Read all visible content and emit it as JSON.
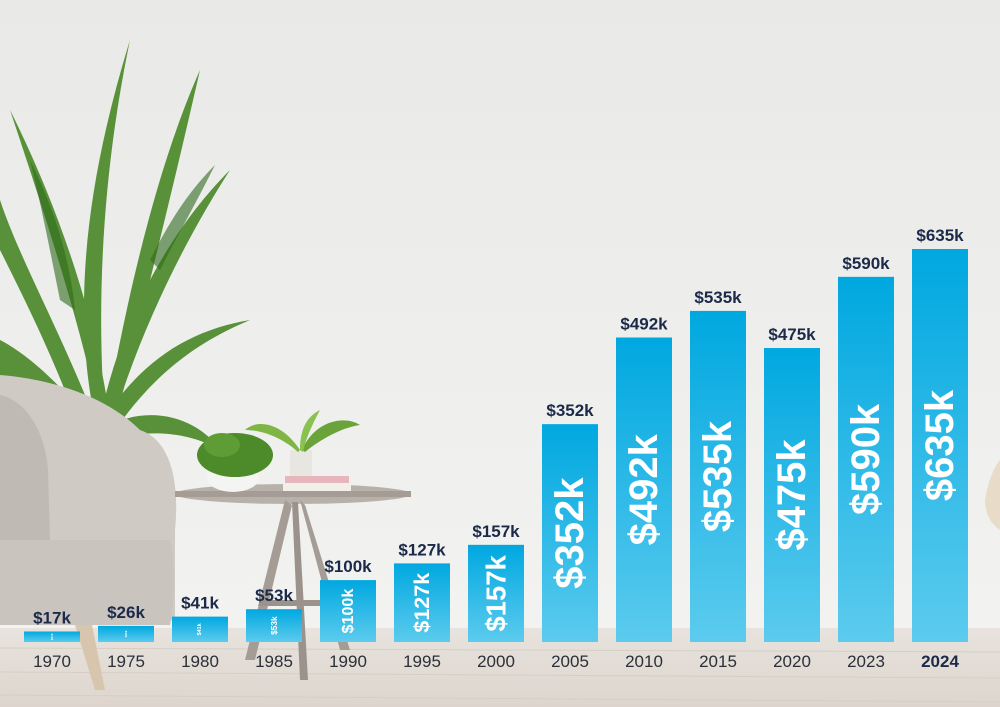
{
  "chart_data": {
    "type": "bar",
    "categories": [
      "1970",
      "1975",
      "1980",
      "1985",
      "1990",
      "1995",
      "2000",
      "2005",
      "2010",
      "2015",
      "2020",
      "2023",
      "2024"
    ],
    "values": [
      17,
      26,
      41,
      53,
      100,
      127,
      157,
      352,
      492,
      535,
      475,
      590,
      635
    ],
    "unit": "k",
    "value_labels": [
      "$17k",
      "$26k",
      "$41k",
      "$53k",
      "$100k",
      "$127k",
      "$157k",
      "$352k",
      "$492k",
      "$535k",
      "$475k",
      "$590k",
      "$635k"
    ],
    "highlight_category": "2024",
    "title": "",
    "xlabel": "",
    "ylabel": "",
    "grid": false,
    "legend": "none",
    "bar_color_top": "#00a8e0",
    "bar_color_bottom": "#5ccbee",
    "label_color": "#1c2a4a"
  },
  "background": {
    "wall_color": "#eeeeec",
    "floor_color": "#e6e1dc",
    "plant_color": "#4c8a2a",
    "chair_color": "#cfcac4",
    "table_color": "#b8b1aa"
  }
}
